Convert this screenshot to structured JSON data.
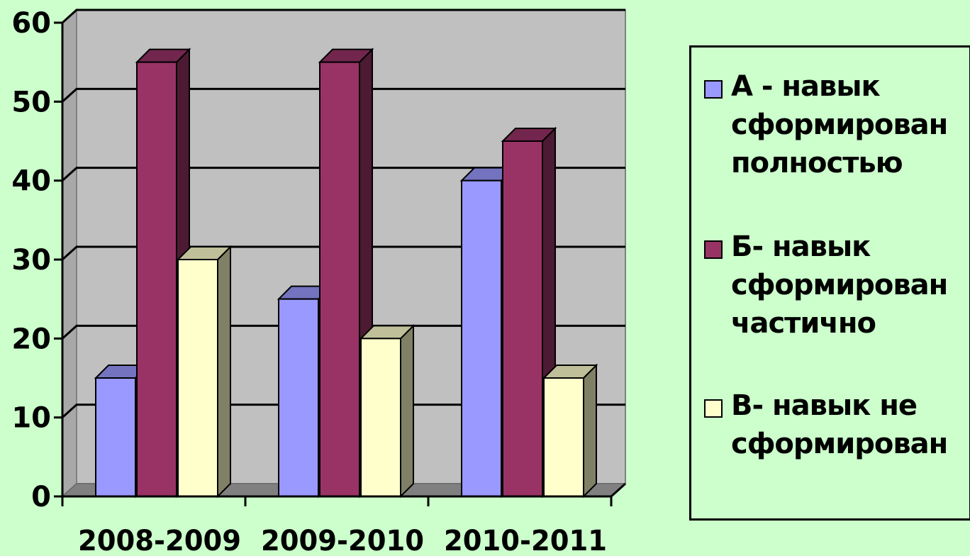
{
  "chart_data": {
    "type": "bar",
    "categories": [
      "2008-2009",
      "2009-2010",
      "2010-2011"
    ],
    "series": [
      {
        "name": "А - навык сформирован полностью",
        "values": [
          15,
          25,
          40
        ],
        "color": "#9999ff"
      },
      {
        "name": "Б- навык сформирован частично",
        "values": [
          55,
          55,
          45
        ],
        "color": "#993366"
      },
      {
        "name": "В- навык не сформирован",
        "values": [
          30,
          20,
          15
        ],
        "color": "#ffffcc"
      }
    ],
    "yticks": [
      "0",
      "10",
      "20",
      "30",
      "40",
      "50",
      "60"
    ],
    "ylim": [
      0,
      60
    ],
    "grid": true,
    "legend_position": "right",
    "plot_background": "#c0c0c0",
    "page_background": "#ccffcc"
  }
}
